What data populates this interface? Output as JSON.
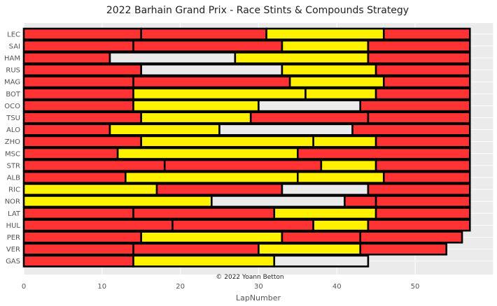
{
  "chart_data": {
    "type": "bar",
    "orientation": "horizontal-stacked",
    "title": "2022 Barhain Grand Prix - Race Stints & Compounds Strategy",
    "xlabel": "LapNumber",
    "ylabel": "",
    "xlim": [
      0,
      60
    ],
    "xticks": [
      0,
      10,
      20,
      30,
      40,
      50
    ],
    "grid": true,
    "annotation": "© 2022 Yoann Betton",
    "compound_colors": {
      "SOFT": "#ff3333",
      "MEDIUM": "#fff200",
      "HARD": "#ebebeb"
    },
    "drivers": [
      "LEC",
      "SAI",
      "HAM",
      "RUS",
      "MAG",
      "BOT",
      "OCO",
      "TSU",
      "ALO",
      "ZHO",
      "MSC",
      "STR",
      "ALB",
      "RIC",
      "NOR",
      "LAT",
      "HUL",
      "PER",
      "VER",
      "GAS"
    ],
    "stints": [
      {
        "driver": "LEC",
        "segments": [
          {
            "compound": "SOFT",
            "laps": 15
          },
          {
            "compound": "SOFT",
            "laps": 16
          },
          {
            "compound": "MEDIUM",
            "laps": 15
          },
          {
            "compound": "SOFT",
            "laps": 11
          }
        ]
      },
      {
        "driver": "SAI",
        "segments": [
          {
            "compound": "SOFT",
            "laps": 14
          },
          {
            "compound": "SOFT",
            "laps": 19
          },
          {
            "compound": "MEDIUM",
            "laps": 11
          },
          {
            "compound": "SOFT",
            "laps": 13
          }
        ]
      },
      {
        "driver": "HAM",
        "segments": [
          {
            "compound": "SOFT",
            "laps": 11
          },
          {
            "compound": "HARD",
            "laps": 16
          },
          {
            "compound": "MEDIUM",
            "laps": 17
          },
          {
            "compound": "SOFT",
            "laps": 13
          }
        ]
      },
      {
        "driver": "RUS",
        "segments": [
          {
            "compound": "SOFT",
            "laps": 15
          },
          {
            "compound": "HARD",
            "laps": 18
          },
          {
            "compound": "MEDIUM",
            "laps": 12
          },
          {
            "compound": "SOFT",
            "laps": 12
          }
        ]
      },
      {
        "driver": "MAG",
        "segments": [
          {
            "compound": "SOFT",
            "laps": 14
          },
          {
            "compound": "SOFT",
            "laps": 20
          },
          {
            "compound": "MEDIUM",
            "laps": 12
          },
          {
            "compound": "SOFT",
            "laps": 11
          }
        ]
      },
      {
        "driver": "BOT",
        "segments": [
          {
            "compound": "SOFT",
            "laps": 14
          },
          {
            "compound": "MEDIUM",
            "laps": 22
          },
          {
            "compound": "MEDIUM",
            "laps": 9
          },
          {
            "compound": "SOFT",
            "laps": 12
          }
        ]
      },
      {
        "driver": "OCO",
        "segments": [
          {
            "compound": "SOFT",
            "laps": 14
          },
          {
            "compound": "MEDIUM",
            "laps": 16
          },
          {
            "compound": "HARD",
            "laps": 13
          },
          {
            "compound": "SOFT",
            "laps": 14
          }
        ]
      },
      {
        "driver": "TSU",
        "segments": [
          {
            "compound": "SOFT",
            "laps": 15
          },
          {
            "compound": "MEDIUM",
            "laps": 14
          },
          {
            "compound": "SOFT",
            "laps": 15
          },
          {
            "compound": "SOFT",
            "laps": 13
          }
        ]
      },
      {
        "driver": "ALO",
        "segments": [
          {
            "compound": "SOFT",
            "laps": 11
          },
          {
            "compound": "MEDIUM",
            "laps": 14
          },
          {
            "compound": "HARD",
            "laps": 17
          },
          {
            "compound": "SOFT",
            "laps": 15
          }
        ]
      },
      {
        "driver": "ZHO",
        "segments": [
          {
            "compound": "SOFT",
            "laps": 15
          },
          {
            "compound": "MEDIUM",
            "laps": 22
          },
          {
            "compound": "MEDIUM",
            "laps": 8
          },
          {
            "compound": "SOFT",
            "laps": 12
          }
        ]
      },
      {
        "driver": "MSC",
        "segments": [
          {
            "compound": "SOFT",
            "laps": 12
          },
          {
            "compound": "MEDIUM",
            "laps": 23
          },
          {
            "compound": "SOFT",
            "laps": 22
          }
        ]
      },
      {
        "driver": "STR",
        "segments": [
          {
            "compound": "SOFT",
            "laps": 18
          },
          {
            "compound": "SOFT",
            "laps": 20
          },
          {
            "compound": "MEDIUM",
            "laps": 7
          },
          {
            "compound": "SOFT",
            "laps": 12
          }
        ]
      },
      {
        "driver": "ALB",
        "segments": [
          {
            "compound": "SOFT",
            "laps": 13
          },
          {
            "compound": "MEDIUM",
            "laps": 22
          },
          {
            "compound": "MEDIUM",
            "laps": 11
          },
          {
            "compound": "SOFT",
            "laps": 11
          }
        ]
      },
      {
        "driver": "RIC",
        "segments": [
          {
            "compound": "MEDIUM",
            "laps": 17
          },
          {
            "compound": "SOFT",
            "laps": 16
          },
          {
            "compound": "HARD",
            "laps": 11
          },
          {
            "compound": "SOFT",
            "laps": 13
          }
        ]
      },
      {
        "driver": "NOR",
        "segments": [
          {
            "compound": "MEDIUM",
            "laps": 24
          },
          {
            "compound": "HARD",
            "laps": 17
          },
          {
            "compound": "SOFT",
            "laps": 4
          },
          {
            "compound": "SOFT",
            "laps": 12
          }
        ]
      },
      {
        "driver": "LAT",
        "segments": [
          {
            "compound": "SOFT",
            "laps": 14
          },
          {
            "compound": "SOFT",
            "laps": 18
          },
          {
            "compound": "MEDIUM",
            "laps": 13
          },
          {
            "compound": "SOFT",
            "laps": 12
          }
        ]
      },
      {
        "driver": "HUL",
        "segments": [
          {
            "compound": "SOFT",
            "laps": 19
          },
          {
            "compound": "SOFT",
            "laps": 18
          },
          {
            "compound": "MEDIUM",
            "laps": 7
          },
          {
            "compound": "SOFT",
            "laps": 13
          }
        ]
      },
      {
        "driver": "PER",
        "segments": [
          {
            "compound": "SOFT",
            "laps": 15
          },
          {
            "compound": "MEDIUM",
            "laps": 18
          },
          {
            "compound": "SOFT",
            "laps": 10
          },
          {
            "compound": "SOFT",
            "laps": 13
          }
        ]
      },
      {
        "driver": "VER",
        "segments": [
          {
            "compound": "SOFT",
            "laps": 14
          },
          {
            "compound": "SOFT",
            "laps": 16
          },
          {
            "compound": "MEDIUM",
            "laps": 13
          },
          {
            "compound": "SOFT",
            "laps": 11
          }
        ]
      },
      {
        "driver": "GAS",
        "segments": [
          {
            "compound": "SOFT",
            "laps": 14
          },
          {
            "compound": "MEDIUM",
            "laps": 18
          },
          {
            "compound": "HARD",
            "laps": 12
          }
        ]
      }
    ]
  }
}
